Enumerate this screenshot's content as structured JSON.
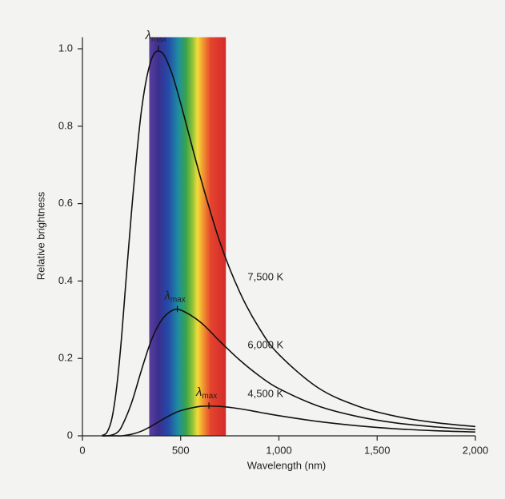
{
  "chart_data": {
    "type": "line",
    "x_label": "Wavelength (nm)",
    "y_label": "Relative brightness",
    "x": [
      100,
      125,
      150,
      175,
      200,
      250,
      300,
      350,
      400,
      450,
      500,
      600,
      700,
      800,
      900,
      1000,
      1200,
      1400,
      1600,
      1800,
      2000
    ],
    "series": [
      {
        "name": "7,500 K",
        "color": "#111111",
        "values": [
          0.001,
          0.009,
          0.045,
          0.129,
          0.26,
          0.58,
          0.839,
          0.971,
          0.992,
          0.944,
          0.859,
          0.669,
          0.5,
          0.372,
          0.278,
          0.21,
          0.124,
          0.077,
          0.05,
          0.034,
          0.024
        ]
      },
      {
        "name": "6,000 K",
        "color": "#111111",
        "values": [
          0,
          0,
          0.002,
          0.008,
          0.024,
          0.085,
          0.169,
          0.246,
          0.297,
          0.322,
          0.325,
          0.294,
          0.244,
          0.196,
          0.155,
          0.122,
          0.077,
          0.05,
          0.033,
          0.023,
          0.016
        ]
      },
      {
        "name": "4,500 K",
        "color": "#111111",
        "values": [
          0,
          0,
          0,
          0,
          0,
          0.004,
          0.012,
          0.025,
          0.04,
          0.054,
          0.065,
          0.076,
          0.076,
          0.07,
          0.061,
          0.052,
          0.037,
          0.026,
          0.018,
          0.013,
          0.01
        ]
      }
    ],
    "annotations": [
      {
        "text": "λ",
        "sub": "max",
        "x": 386,
        "y": 1.0
      },
      {
        "text": "λ",
        "sub": "max",
        "x": 483,
        "y": 0.328
      },
      {
        "text": "λ",
        "sub": "max",
        "x": 644,
        "y": 0.078
      }
    ],
    "band": [
      340,
      730
    ],
    "xlim": [
      0,
      2000
    ],
    "ylim": [
      0,
      1.03
    ],
    "xticks": [
      0,
      500,
      {
        "value": 1000,
        "label": "1,000"
      },
      {
        "value": 1500,
        "label": "1,500"
      },
      {
        "value": 2000,
        "label": "2,000"
      }
    ],
    "yticks": [
      0,
      0.2,
      0.4,
      0.6,
      0.8,
      {
        "value": 1,
        "label": "1.0"
      }
    ]
  }
}
